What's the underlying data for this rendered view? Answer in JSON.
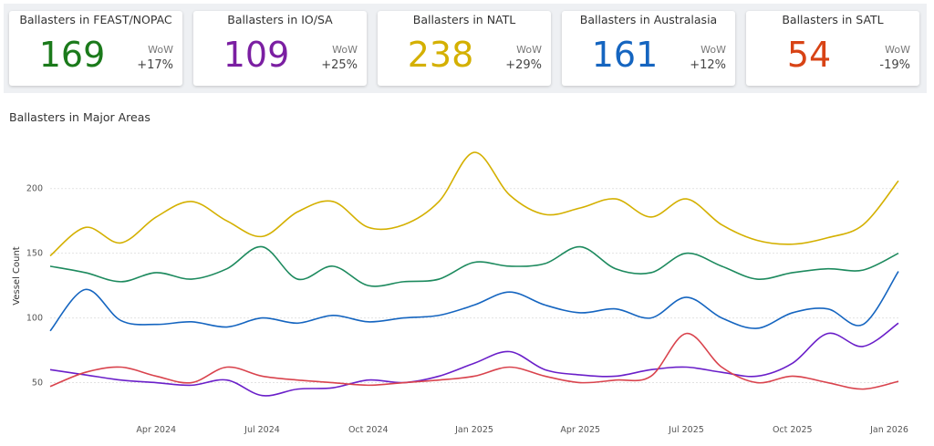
{
  "kpis": [
    {
      "title": "Ballasters in FEAST/NOPAC",
      "value": "169",
      "wow_label": "WoW",
      "wow": "+17%",
      "color": "#1b7a1b"
    },
    {
      "title": "Ballasters in IO/SA",
      "value": "109",
      "wow_label": "WoW",
      "wow": "+25%",
      "color": "#7b1fa2"
    },
    {
      "title": "Ballasters in NATL",
      "value": "238",
      "wow_label": "WoW",
      "wow": "+29%",
      "color": "#d4b000"
    },
    {
      "title": "Ballasters in Australasia",
      "value": "161",
      "wow_label": "WoW",
      "wow": "+12%",
      "color": "#1565c0"
    },
    {
      "title": "Ballasters in SATL",
      "value": "54",
      "wow_label": "WoW",
      "wow": "-19%",
      "color": "#d84315"
    }
  ],
  "chart_data": {
    "type": "line",
    "title": "Ballasters in Major Areas",
    "xlabel": "",
    "ylabel": "Vessel Count",
    "ylim": [
      25,
      240
    ],
    "y_ticks": [
      50,
      100,
      150,
      200
    ],
    "x_tick_labels": [
      "Apr 2024",
      "Jul 2024",
      "Oct 2024",
      "Jan 2025",
      "Apr 2025",
      "Jul 2025",
      "Oct 2025",
      "Jan 2026"
    ],
    "x": [
      "Jan 2024",
      "Feb 2024",
      "Mar 2024",
      "Apr 2024",
      "May 2024",
      "Jun 2024",
      "Jul 2024",
      "Aug 2024",
      "Sep 2024",
      "Oct 2024",
      "Nov 2024",
      "Dec 2024",
      "Jan 2025",
      "Feb 2025",
      "Mar 2025",
      "Apr 2025",
      "May 2025",
      "Jun 2025",
      "Jul 2025",
      "Aug 2025",
      "Sep 2025",
      "Oct 2025",
      "Nov 2025",
      "Dec 2025",
      "Jan 2026"
    ],
    "series": [
      {
        "name": "NATL",
        "color": "#d4b000",
        "values": [
          148,
          170,
          158,
          178,
          190,
          175,
          163,
          182,
          190,
          170,
          172,
          190,
          228,
          195,
          180,
          185,
          192,
          178,
          192,
          172,
          160,
          157,
          162,
          172,
          206
        ]
      },
      {
        "name": "FEAST/NOPAC",
        "color": "#1d8a5e",
        "values": [
          140,
          135,
          128,
          135,
          130,
          138,
          155,
          130,
          140,
          125,
          128,
          130,
          143,
          140,
          142,
          155,
          138,
          135,
          150,
          140,
          130,
          135,
          138,
          137,
          150
        ]
      },
      {
        "name": "Australasia",
        "color": "#1565c0",
        "values": [
          90,
          122,
          98,
          95,
          97,
          93,
          100,
          96,
          102,
          97,
          100,
          102,
          110,
          120,
          110,
          104,
          107,
          100,
          116,
          100,
          92,
          104,
          107,
          95,
          136
        ]
      },
      {
        "name": "IO/SA",
        "color": "#6a1fc9",
        "values": [
          60,
          56,
          52,
          50,
          48,
          52,
          40,
          45,
          46,
          52,
          50,
          55,
          65,
          74,
          60,
          56,
          55,
          60,
          62,
          58,
          55,
          65,
          88,
          78,
          96
        ]
      },
      {
        "name": "SATL",
        "color": "#d9434d",
        "values": [
          47,
          58,
          62,
          55,
          50,
          62,
          55,
          52,
          50,
          48,
          50,
          52,
          55,
          62,
          55,
          50,
          52,
          55,
          88,
          62,
          50,
          55,
          50,
          45,
          51
        ]
      }
    ]
  }
}
